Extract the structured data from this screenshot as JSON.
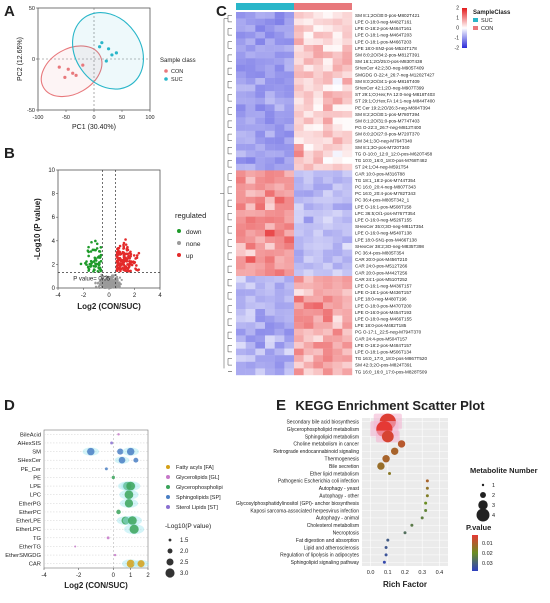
{
  "panel_letters": [
    "A",
    "B",
    "C",
    "D",
    "E"
  ],
  "colors": {
    "con": "#e8787c",
    "suc": "#29b6c9",
    "down": "#1e9a2a",
    "none": "#9a9a9a",
    "up": "#e32a2a",
    "heat_low": "#2b2bd9",
    "heat_mid": "#ffffff",
    "heat_high": "#e31a1c"
  },
  "chart_data": [
    {
      "panel": "A",
      "type": "scatter",
      "xlabel": "PC1 (30.40%)",
      "ylabel": "PC2 (12.65%)",
      "xlim": [
        -100,
        100
      ],
      "ylim": [
        -50,
        50
      ],
      "xticks": [
        -100,
        -50,
        0,
        50,
        100
      ],
      "yticks": [
        -50,
        0,
        50
      ],
      "legend_title": "Sample class",
      "series": [
        {
          "name": "CON",
          "color": "#e8787c",
          "points": [
            [
              -62,
              -8
            ],
            [
              -52,
              -18
            ],
            [
              -46,
              -10
            ],
            [
              -38,
              -14
            ],
            [
              -32,
              -16
            ],
            [
              -20,
              -6
            ]
          ]
        },
        {
          "name": "SUC",
          "color": "#29b6c9",
          "points": [
            [
              10,
              12
            ],
            [
              14,
              16
            ],
            [
              22,
              -2
            ],
            [
              26,
              10
            ],
            [
              32,
              4
            ],
            [
              40,
              6
            ]
          ]
        }
      ],
      "ellipses": [
        {
          "name": "CON",
          "cx": -40,
          "cy": -12,
          "rx": 58,
          "ry": 22,
          "angle": -30
        },
        {
          "name": "SUC",
          "cx": 25,
          "cy": 8,
          "rx": 58,
          "ry": 40,
          "angle": -35
        }
      ]
    },
    {
      "panel": "B",
      "type": "scatter",
      "xlabel": "Log2 (CON/SUC)",
      "ylabel": "-Log10 (P value)",
      "xlim": [
        -4,
        4
      ],
      "ylim": [
        0,
        10
      ],
      "xticks": [
        -4,
        -2,
        0,
        2,
        4
      ],
      "yticks": [
        0,
        2,
        4,
        6,
        8,
        10
      ],
      "threshold_label": "P value= 0.05",
      "threshold_y": 1.3,
      "fc_lines": [
        -0.5,
        0.5
      ],
      "legend_title": "regulated",
      "categories": [
        "down",
        "none",
        "up"
      ],
      "counts": {
        "down": 60,
        "none": 320,
        "up": 150
      }
    },
    {
      "panel": "C",
      "type": "heatmap",
      "legend_title": "SampleClass",
      "groups": [
        "CON",
        "SUC"
      ],
      "colorbar_ticks": [
        -2,
        -1,
        0,
        1,
        2
      ],
      "rows": [
        "SM 8:1;2O/30:0-pos-M802T421",
        "LPE O-18:0-neg-M482T161",
        "LPE O-18:2-pos-M464T161",
        "LPE O-18:1-neg-M464T203",
        "LPE O-18:1-pos-M466T203",
        "LPE 18:0-SN2-pos-M524T178",
        "SM 8:0;2O/34:2-pos-M812T391",
        "SM 16:1;2O/25:0-pos-M830T438",
        "SHexCer 42:2;3O-neg-M905T409",
        "SMGDG O-22:4_26:7-neg-M1202T427",
        "SM 8:0;2O/34:1-pos-M816T409",
        "SHexCer 42:1;2O-neg-M907T399",
        "ST 29:1;O;Hex;FA 12:0-neg-M818T403",
        "ST 29:1;O;Hex;FA 14:1-neg-M844T400",
        "PE Cer 19:2;2O/26:3-neg-M804T394",
        "SM 8:2;2O/30:1-pos-M780T394",
        "SM 8:1;2O/31:0-pos-M774T403",
        "PG O-22:3_26:7-neg-M812T400",
        "SM 8:0;2O/27:0-pos-M720T370",
        "SM 34:1;3O-neg-M764T340",
        "SM 8:1;3O-pos-M720T340",
        "TG O-10:0_12:0_12:0-pos-M620T458",
        "TG 10:0_16:0_18:0-pos-M768T482",
        "ST 24:1;O4-neg-M591T54",
        "CAR 10:0-pos-M316T88",
        "TG 18:1_18:2-pos-M744T354",
        "PC 16:0_20:4-neg-M807T343",
        "PC 16:0_20:4-pos-M782T343",
        "PC 36:4-pos-M805T342_1",
        "LPE O-16:1-pos-M508T158",
        "LPC 36:5;O/1-pos-M767T354",
        "LPE O-16:0-neg-M526T155",
        "SHexCer 35:0;3O-neg-M811T354",
        "LPE O-16:0-neg-M540T138",
        "LPE 18:0-SN1-pos-M466T138",
        "SHexCer 38:2;3O-neg-M835T398",
        "PC 36:4-pos-M805T354",
        "CAR 20:0-pos-M456T210",
        "CAR 24:0-pos-M512T266",
        "CAR 20:0-pos-M442T256",
        "CAR 24:1-pos-M510T252",
        "LPE O-16:1-neg-M436T157",
        "LPE O-18:1-pos-M436T157",
        "LPE 18:0-neg-M480T196",
        "LPE O-18:0-pos-M470T200",
        "LPE O-16:0-pos-M454T193",
        "LPE O-18:0-neg-M466T155",
        "LPE 18:0-pos-M482T185",
        "PG O-17:1_22:5-neg-M794T370",
        "CAR 24:4-pos-M504T157",
        "LPE O-18:2-pos-M484T157",
        "LPE O-18:1-pos-M506T134",
        "TG 16:0_17:0_18:0-pos-M867T520",
        "SM 42:3;2O-pos-M824T391",
        "TG 16:0_16:0_17:0-pos-M828T509"
      ]
    },
    {
      "panel": "D",
      "type": "scatter",
      "xlabel": "Log2 (CON/SUC)",
      "xlim": [
        -4,
        2
      ],
      "xticks": [
        -4,
        -2,
        0,
        1,
        2
      ],
      "categories": [
        "BileAcid",
        "AHexSIS",
        "SM",
        "SHexCer",
        "PE_Cer",
        "PE",
        "LPE",
        "LPC",
        "EtherPG",
        "EtherPC",
        "EtherLPE",
        "EtherLPC",
        "TG",
        "EtherTG",
        "EtherSMGDG",
        "CAR"
      ],
      "class_legend": [
        "Fatty acyls [FA]",
        "Glycerolipids [GL]",
        "Glycerophospholipi",
        "Sphingolipids [SP]",
        "Sterol Lipids [ST]"
      ],
      "class_colors": [
        "#d4a017",
        "#c678c8",
        "#3aa35a",
        "#4a7fc4",
        "#8a6fd0"
      ],
      "size_legend_title": "-Log10(P value)",
      "size_legend_values": [
        1.5,
        2.0,
        2.5,
        3.0
      ],
      "points": [
        {
          "cat": "BileAcid",
          "x": 0.3,
          "cls": 1,
          "p": 1.4
        },
        {
          "cat": "AHexSIS",
          "x": -0.1,
          "cls": 4,
          "p": 1.5
        },
        {
          "cat": "SM",
          "x": -1.3,
          "cls": 3,
          "p": 2.6
        },
        {
          "cat": "SM",
          "x": 0.4,
          "cls": 3,
          "p": 2.3
        },
        {
          "cat": "SM",
          "x": 1.0,
          "cls": 3,
          "p": 2.6
        },
        {
          "cat": "SHexCer",
          "x": 0.5,
          "cls": 3,
          "p": 2.4
        },
        {
          "cat": "SHexCer",
          "x": 1.3,
          "cls": 3,
          "p": 2.0
        },
        {
          "cat": "PE_Cer",
          "x": -0.4,
          "cls": 3,
          "p": 1.5
        },
        {
          "cat": "PE",
          "x": 0.0,
          "cls": 2,
          "p": 1.6
        },
        {
          "cat": "LPE",
          "x": 0.8,
          "cls": 2,
          "p": 2.8
        },
        {
          "cat": "LPE",
          "x": 1.0,
          "cls": 2,
          "p": 2.9
        },
        {
          "cat": "LPC",
          "x": 0.9,
          "cls": 2,
          "p": 2.9
        },
        {
          "cat": "EtherPG",
          "x": 0.9,
          "cls": 2,
          "p": 2.8
        },
        {
          "cat": "EtherPC",
          "x": 0.3,
          "cls": 2,
          "p": 1.9
        },
        {
          "cat": "EtherLPE",
          "x": 0.7,
          "cls": 2,
          "p": 2.7
        },
        {
          "cat": "EtherLPE",
          "x": 1.1,
          "cls": 2,
          "p": 2.9
        },
        {
          "cat": "EtherLPC",
          "x": 1.2,
          "cls": 2,
          "p": 3.0
        },
        {
          "cat": "TG",
          "x": -0.3,
          "cls": 1,
          "p": 1.5
        },
        {
          "cat": "EtherTG",
          "x": -2.2,
          "cls": 1,
          "p": 1.3
        },
        {
          "cat": "EtherSMGDG",
          "x": 0.1,
          "cls": 1,
          "p": 1.4
        },
        {
          "cat": "CAR",
          "x": 1.0,
          "cls": 0,
          "p": 2.7
        },
        {
          "cat": "CAR",
          "x": 1.6,
          "cls": 0,
          "p": 2.5
        }
      ]
    },
    {
      "panel": "E",
      "type": "scatter",
      "title": "KEGG Enrichment Scatter Plot",
      "xlabel": "Rich Factor",
      "xlim": [
        -0.05,
        0.45
      ],
      "xticks": [
        0.0,
        0.1,
        0.2,
        0.3,
        0.4
      ],
      "size_legend_title": "Metabolite Number",
      "size_legend_values": [
        1,
        2,
        3,
        4
      ],
      "color_legend_title": "P.value",
      "color_legend_ticks": [
        0.01,
        0.02,
        0.03
      ],
      "points": [
        {
          "pathway": "Secondary bile acid biosynthesis",
          "x": 0.1,
          "n": 4,
          "p": 0.005
        },
        {
          "pathway": "Glycerophospholipid metabolism",
          "x": 0.08,
          "n": 4,
          "p": 0.004
        },
        {
          "pathway": "Sphingolipid metabolism",
          "x": 0.1,
          "n": 3,
          "p": 0.006
        },
        {
          "pathway": "Choline metabolism in cancer",
          "x": 0.18,
          "n": 2,
          "p": 0.01
        },
        {
          "pathway": "Retrograde endocannabinoid signaling",
          "x": 0.14,
          "n": 2,
          "p": 0.012
        },
        {
          "pathway": "Thermogenesis",
          "x": 0.09,
          "n": 2,
          "p": 0.012
        },
        {
          "pathway": "Bile secretion",
          "x": 0.06,
          "n": 2,
          "p": 0.014
        },
        {
          "pathway": "Ether lipid metabolism",
          "x": 0.11,
          "n": 1,
          "p": 0.016
        },
        {
          "pathway": "Pathogenic Escherichia coli infection",
          "x": 0.33,
          "n": 1,
          "p": 0.012
        },
        {
          "pathway": "Autophagy - yeast",
          "x": 0.33,
          "n": 1,
          "p": 0.015
        },
        {
          "pathway": "Autophagy - other",
          "x": 0.33,
          "n": 1,
          "p": 0.017
        },
        {
          "pathway": "Glycosylphosphatidylinositol (GPI)- anchor biosynthesis",
          "x": 0.32,
          "n": 1,
          "p": 0.02
        },
        {
          "pathway": "Kaposi sarcoma-associated herpesvirus infection",
          "x": 0.32,
          "n": 1,
          "p": 0.022
        },
        {
          "pathway": "Autophagy - animal",
          "x": 0.3,
          "n": 1,
          "p": 0.023
        },
        {
          "pathway": "Cholesterol metabolism",
          "x": 0.24,
          "n": 1,
          "p": 0.024
        },
        {
          "pathway": "Necroptosis",
          "x": 0.2,
          "n": 1,
          "p": 0.026
        },
        {
          "pathway": "Fat digestion and absorption",
          "x": 0.1,
          "n": 1,
          "p": 0.03
        },
        {
          "pathway": "Lipid and atherosclerosis",
          "x": 0.09,
          "n": 1,
          "p": 0.031
        },
        {
          "pathway": "Regulation of lipolysis in adipocytes",
          "x": 0.09,
          "n": 1,
          "p": 0.032
        },
        {
          "pathway": "Sphingolipid signaling pathway",
          "x": 0.08,
          "n": 1,
          "p": 0.034
        }
      ]
    }
  ]
}
